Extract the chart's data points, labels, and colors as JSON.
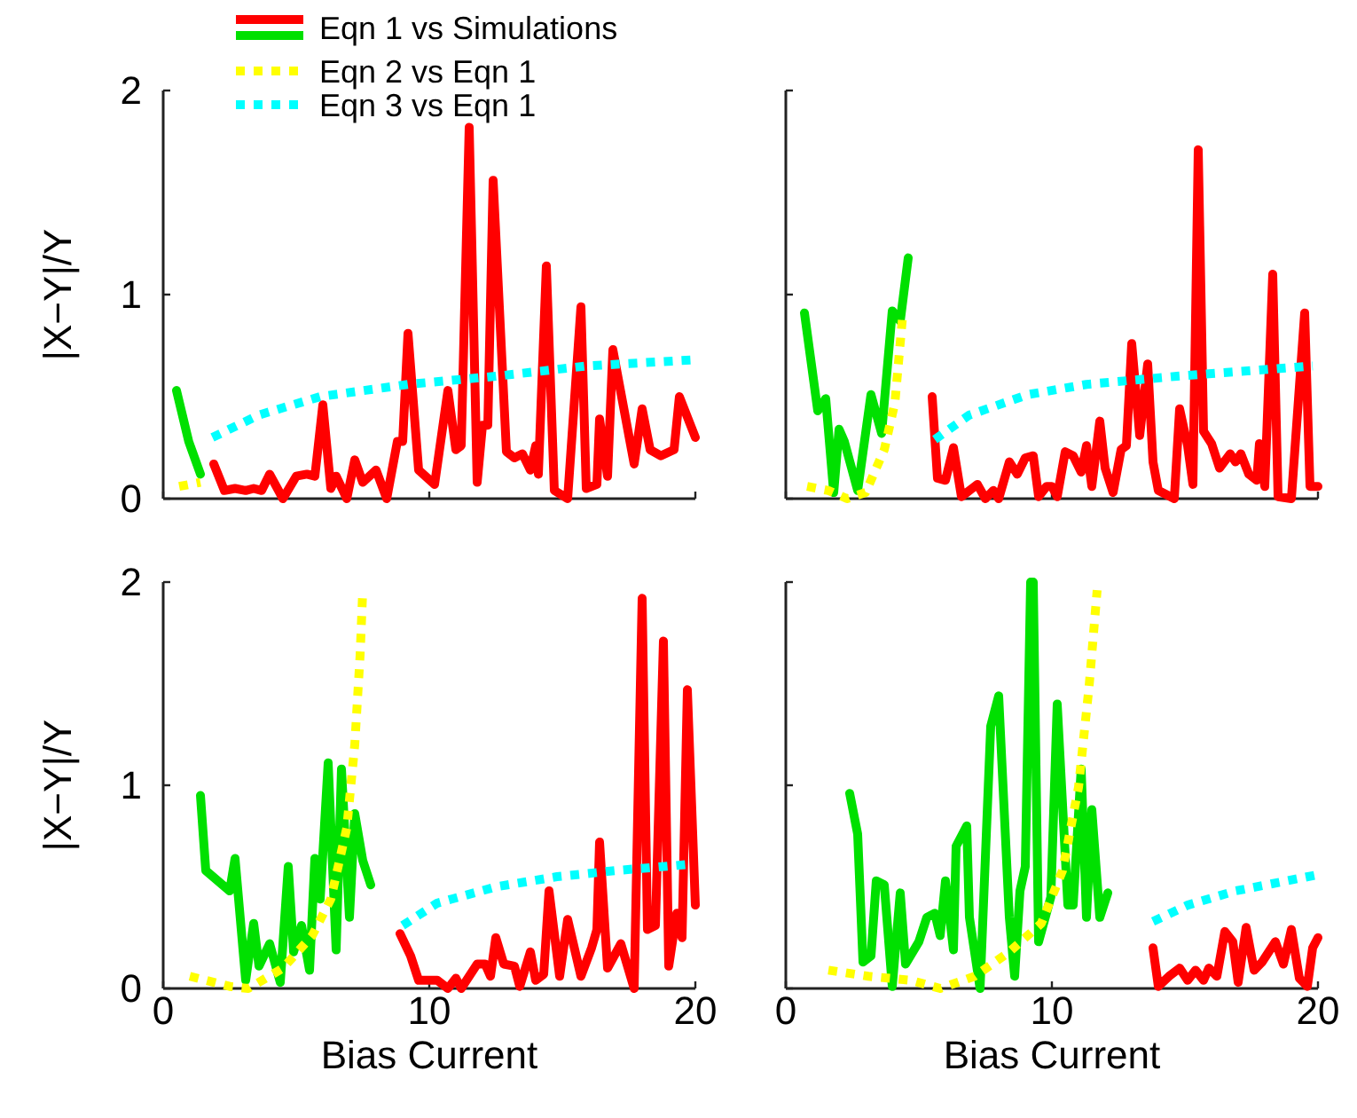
{
  "chart_data": [
    {
      "type": "line",
      "ylabel": "|X−Y|/Y",
      "xlim": [
        0,
        20
      ],
      "ylim": [
        0,
        2
      ],
      "xticks": [
        {
          "value": 0,
          "label": null
        },
        {
          "value": 10,
          "label": null
        },
        {
          "value": 20,
          "label": null
        }
      ],
      "yticks": [
        0,
        1,
        2
      ],
      "tick_labels": "y",
      "legend": "top",
      "series": [
        {
          "name": "Eqn 1 vs Simulations",
          "color": "#ff0000",
          "line_style": "solid",
          "x": [
            1.9,
            2.3,
            2.7,
            3.1,
            3.4,
            3.7,
            4.0,
            4.5,
            5.0,
            5.4,
            5.7,
            6.0,
            6.3,
            6.5,
            6.9,
            7.2,
            7.5,
            8.0,
            8.4,
            8.8,
            9.0,
            9.2,
            9.6,
            10.2,
            10.7,
            11.0,
            11.2,
            11.5,
            11.8,
            12.0,
            12.2,
            12.4,
            12.9,
            13.2,
            13.5,
            13.8,
            14.0,
            14.1,
            14.4,
            14.7,
            15.2,
            15.7,
            15.9,
            16.3,
            16.4,
            16.7,
            16.9,
            17.7,
            18.0,
            18.3,
            18.7,
            19.2,
            19.4,
            20.0
          ],
          "values": [
            0.17,
            0.04,
            0.05,
            0.04,
            0.05,
            0.04,
            0.12,
            0.0,
            0.11,
            0.12,
            0.11,
            0.46,
            0.05,
            0.11,
            0.0,
            0.19,
            0.08,
            0.14,
            0.0,
            0.28,
            0.28,
            0.81,
            0.14,
            0.07,
            0.53,
            0.24,
            0.26,
            1.82,
            0.08,
            0.36,
            0.36,
            1.56,
            0.23,
            0.2,
            0.22,
            0.14,
            0.26,
            0.12,
            1.14,
            0.04,
            0.0,
            0.94,
            0.05,
            0.07,
            0.39,
            0.11,
            0.73,
            0.17,
            0.44,
            0.24,
            0.21,
            0.24,
            0.5,
            0.3
          ]
        },
        {
          "color": "#00e000",
          "line_style": "solid",
          "x": [
            0.5,
            0.96,
            1.4
          ],
          "values": [
            0.53,
            0.28,
            0.12
          ]
        },
        {
          "name": "Eqn 2 vs Eqn 1",
          "color": "#ffff00",
          "line_style": "dotted",
          "x": [
            0.6,
            1.4
          ],
          "values": [
            0.06,
            0.08
          ]
        },
        {
          "name": "Eqn 3 vs Eqn 1",
          "color": "#00ffff",
          "line_style": "dotted",
          "x": [
            1.85,
            3.6,
            5.9,
            9.2,
            12.5,
            15.9,
            19.9
          ],
          "values": [
            0.3,
            0.41,
            0.5,
            0.56,
            0.6,
            0.65,
            0.68
          ]
        }
      ]
    },
    {
      "type": "line",
      "xlim": [
        0,
        20
      ],
      "ylim": [
        0,
        2
      ],
      "xticks": [
        {
          "value": 0,
          "label": null
        },
        {
          "value": 10,
          "label": null
        },
        {
          "value": 20,
          "label": null
        }
      ],
      "yticks": [
        {
          "value": 0,
          "label": null
        },
        {
          "value": 1,
          "label": null
        },
        {
          "value": 2,
          "label": null
        }
      ],
      "tick_labels": false,
      "series": [
        {
          "color": "#ff0000",
          "line_style": "solid",
          "x": [
            5.5,
            5.7,
            6.0,
            6.3,
            6.6,
            7.2,
            7.5,
            7.8,
            8.0,
            8.4,
            8.7,
            9.0,
            9.3,
            9.5,
            9.8,
            10.0,
            10.2,
            10.5,
            10.8,
            11.1,
            11.3,
            11.5,
            11.8,
            12.0,
            12.3,
            12.6,
            12.8,
            13.0,
            13.3,
            13.6,
            13.8,
            14.0,
            14.6,
            14.8,
            15.1,
            15.3,
            15.5,
            15.7,
            16.0,
            16.3,
            16.7,
            16.9,
            17.1,
            17.4,
            17.7,
            17.8,
            18.0,
            18.3,
            18.5,
            19.0,
            19.5,
            19.7,
            20.0
          ],
          "values": [
            0.5,
            0.1,
            0.09,
            0.25,
            0.01,
            0.07,
            0.0,
            0.04,
            0.0,
            0.18,
            0.12,
            0.2,
            0.21,
            0.01,
            0.06,
            0.06,
            0.01,
            0.23,
            0.21,
            0.13,
            0.26,
            0.06,
            0.38,
            0.15,
            0.03,
            0.24,
            0.26,
            0.76,
            0.31,
            0.66,
            0.18,
            0.04,
            0.0,
            0.44,
            0.26,
            0.07,
            1.71,
            0.33,
            0.27,
            0.15,
            0.22,
            0.18,
            0.22,
            0.12,
            0.09,
            0.27,
            0.06,
            1.1,
            0.01,
            0.0,
            0.91,
            0.06,
            0.06
          ]
        },
        {
          "color": "#00e000",
          "line_style": "solid",
          "x": [
            0.7,
            1.2,
            1.5,
            1.8,
            2.0,
            2.2,
            2.7,
            3.2,
            3.6,
            4.0,
            4.3,
            4.6
          ],
          "values": [
            0.91,
            0.43,
            0.49,
            0.03,
            0.34,
            0.28,
            0.04,
            0.51,
            0.32,
            0.92,
            0.87,
            1.18
          ]
        },
        {
          "color": "#ffff00",
          "line_style": "dotted",
          "x": [
            0.8,
            1.6,
            2.3,
            3.0,
            3.7,
            4.1,
            4.4
          ],
          "values": [
            0.06,
            0.04,
            0.0,
            0.03,
            0.24,
            0.47,
            0.91
          ]
        },
        {
          "color": "#00ffff",
          "line_style": "dotted",
          "x": [
            5.6,
            6.9,
            9.1,
            11.3,
            14.7,
            19.8
          ],
          "values": [
            0.29,
            0.41,
            0.51,
            0.56,
            0.6,
            0.65
          ]
        }
      ]
    },
    {
      "type": "line",
      "xlabel": "Bias Current",
      "ylabel": "|X−Y|/Y",
      "xlim": [
        0,
        20
      ],
      "ylim": [
        0,
        2
      ],
      "xticks": [
        0,
        10,
        20
      ],
      "yticks": [
        0,
        1,
        2
      ],
      "series": [
        {
          "color": "#ff0000",
          "line_style": "solid",
          "x": [
            8.9,
            9.3,
            9.6,
            9.9,
            10.3,
            10.7,
            11.0,
            11.2,
            11.8,
            12.1,
            12.3,
            12.5,
            12.8,
            13.2,
            13.4,
            13.8,
            14.0,
            14.3,
            14.5,
            14.9,
            15.2,
            15.7,
            16.1,
            16.3,
            16.4,
            16.7,
            17.2,
            17.7,
            18.0,
            18.2,
            18.5,
            18.8,
            19.0,
            19.3,
            19.5,
            19.7,
            20.0
          ],
          "values": [
            0.27,
            0.16,
            0.04,
            0.04,
            0.04,
            0.0,
            0.05,
            0.0,
            0.12,
            0.12,
            0.06,
            0.25,
            0.12,
            0.11,
            0.01,
            0.18,
            0.04,
            0.07,
            0.48,
            0.06,
            0.34,
            0.06,
            0.2,
            0.29,
            0.72,
            0.1,
            0.22,
            0.0,
            1.92,
            0.29,
            0.31,
            1.71,
            0.11,
            0.37,
            0.25,
            1.47,
            0.41
          ]
        },
        {
          "color": "#00e000",
          "line_style": "solid",
          "x": [
            1.4,
            1.6,
            2.5,
            2.7,
            3.1,
            3.4,
            3.6,
            4.0,
            4.4,
            4.7,
            4.9,
            5.2,
            5.5,
            5.7,
            5.9,
            6.2,
            6.5,
            6.7,
            7.0,
            7.2,
            7.5,
            7.8
          ],
          "values": [
            0.95,
            0.58,
            0.48,
            0.64,
            0.04,
            0.32,
            0.11,
            0.22,
            0.03,
            0.6,
            0.18,
            0.31,
            0.09,
            0.64,
            0.44,
            1.11,
            0.19,
            1.08,
            0.35,
            0.86,
            0.63,
            0.51
          ]
        },
        {
          "color": "#ffff00",
          "line_style": "dotted",
          "x": [
            1.0,
            2.5,
            3.2,
            4.5,
            5.6,
            6.3,
            6.9,
            7.2,
            7.4,
            7.5
          ],
          "values": [
            0.06,
            0.01,
            0.0,
            0.1,
            0.26,
            0.44,
            0.79,
            1.2,
            1.64,
            1.96
          ]
        },
        {
          "color": "#00ffff",
          "line_style": "dotted",
          "x": [
            9.0,
            10.3,
            12.5,
            14.8,
            17.0,
            19.7
          ],
          "values": [
            0.31,
            0.42,
            0.5,
            0.55,
            0.58,
            0.61
          ]
        }
      ]
    },
    {
      "type": "line",
      "xlabel": "Bias Current",
      "xlim": [
        0,
        20
      ],
      "ylim": [
        0,
        2
      ],
      "xticks": [
        0,
        10,
        20
      ],
      "yticks": [
        {
          "value": 0,
          "label": null
        },
        {
          "value": 1,
          "label": null
        },
        {
          "value": 2,
          "label": null
        }
      ],
      "tick_labels": "x",
      "series": [
        {
          "color": "#ff0000",
          "line_style": "solid",
          "x": [
            13.8,
            14.0,
            14.4,
            14.8,
            15.1,
            15.4,
            15.7,
            15.9,
            16.2,
            16.5,
            16.8,
            17.0,
            17.3,
            17.6,
            17.9,
            18.4,
            18.7,
            19.0,
            19.3,
            19.6,
            19.8,
            20.0
          ],
          "values": [
            0.2,
            0.01,
            0.06,
            0.1,
            0.04,
            0.09,
            0.04,
            0.1,
            0.06,
            0.28,
            0.23,
            0.03,
            0.3,
            0.09,
            0.13,
            0.23,
            0.12,
            0.29,
            0.05,
            0.01,
            0.2,
            0.25
          ]
        },
        {
          "color": "#00e000",
          "line_style": "solid",
          "x": [
            2.4,
            2.7,
            2.9,
            3.2,
            3.4,
            3.7,
            4.0,
            4.3,
            4.5,
            5.0,
            5.3,
            5.6,
            5.8,
            6.0,
            6.3,
            6.4,
            6.8,
            6.9,
            7.3,
            7.7,
            8.0,
            8.4,
            8.6,
            8.8,
            9.0,
            9.2,
            9.3,
            9.5,
            9.96,
            10.2,
            10.6,
            10.8,
            11.1,
            11.3,
            11.5,
            11.8,
            12.1
          ],
          "values": [
            0.96,
            0.76,
            0.13,
            0.16,
            0.53,
            0.51,
            0.01,
            0.47,
            0.12,
            0.23,
            0.35,
            0.37,
            0.26,
            0.53,
            0.19,
            0.7,
            0.8,
            0.35,
            0.0,
            1.29,
            1.44,
            0.35,
            0.06,
            0.48,
            0.6,
            2.0,
            2.0,
            0.23,
            0.45,
            1.4,
            0.41,
            0.41,
            1.08,
            0.35,
            0.88,
            0.35,
            0.47
          ]
        },
        {
          "color": "#ffff00",
          "line_style": "dotted",
          "x": [
            1.6,
            3.1,
            4.7,
            5.8,
            7.1,
            8.4,
            9.6,
            10.4,
            11.0,
            11.4,
            11.7
          ],
          "values": [
            0.09,
            0.06,
            0.04,
            0.0,
            0.06,
            0.18,
            0.32,
            0.58,
            0.99,
            1.49,
            1.96
          ]
        },
        {
          "color": "#00ffff",
          "line_style": "dotted",
          "x": [
            13.8,
            15.1,
            16.9,
            20.0
          ],
          "values": [
            0.33,
            0.41,
            0.48,
            0.56
          ]
        }
      ]
    }
  ]
}
